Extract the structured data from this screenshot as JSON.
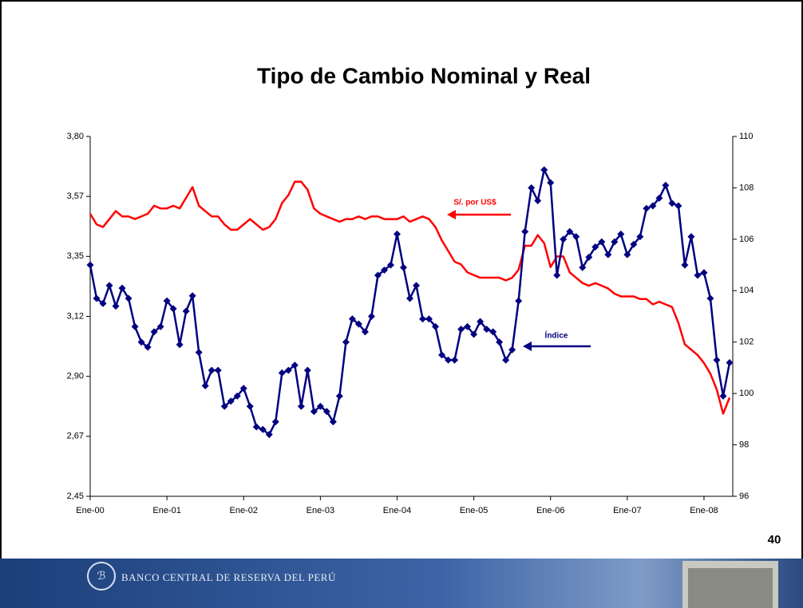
{
  "chart_data": {
    "type": "line",
    "title": "Tipo de Cambio Nominal y Real",
    "categories": [
      "Ene-00",
      null,
      null,
      null,
      null,
      null,
      null,
      null,
      null,
      null,
      null,
      null,
      "Ene-01",
      null,
      null,
      null,
      null,
      null,
      null,
      null,
      null,
      null,
      null,
      null,
      "Ene-02",
      null,
      null,
      null,
      null,
      null,
      null,
      null,
      null,
      null,
      null,
      null,
      "Ene-03",
      null,
      null,
      null,
      null,
      null,
      null,
      null,
      null,
      null,
      null,
      null,
      "Ene-04",
      null,
      null,
      null,
      null,
      null,
      null,
      null,
      null,
      null,
      null,
      null,
      "Ene-05",
      null,
      null,
      null,
      null,
      null,
      null,
      null,
      null,
      null,
      null,
      null,
      "Ene-06",
      null,
      null,
      null,
      null,
      null,
      null,
      null,
      null,
      null,
      null,
      null,
      "Ene-07",
      null,
      null,
      null,
      null,
      null,
      null,
      null,
      null,
      null,
      null,
      null,
      "Ene-08",
      null,
      null,
      null,
      null
    ],
    "series": [
      {
        "name": "S/. por US$",
        "color": "#ff0000",
        "axis": "y",
        "markers": false,
        "values": [
          3.51,
          3.47,
          3.46,
          3.49,
          3.52,
          3.5,
          3.5,
          3.49,
          3.5,
          3.51,
          3.54,
          3.53,
          3.53,
          3.54,
          3.53,
          3.57,
          3.61,
          3.54,
          3.52,
          3.5,
          3.5,
          3.47,
          3.45,
          3.45,
          3.47,
          3.49,
          3.47,
          3.45,
          3.46,
          3.49,
          3.55,
          3.58,
          3.63,
          3.63,
          3.6,
          3.53,
          3.51,
          3.5,
          3.49,
          3.48,
          3.49,
          3.49,
          3.5,
          3.49,
          3.5,
          3.5,
          3.49,
          3.49,
          3.49,
          3.5,
          3.48,
          3.49,
          3.5,
          3.49,
          3.46,
          3.41,
          3.37,
          3.33,
          3.32,
          3.29,
          3.28,
          3.27,
          3.27,
          3.27,
          3.27,
          3.26,
          3.27,
          3.3,
          3.39,
          3.39,
          3.43,
          3.4,
          3.31,
          3.35,
          3.35,
          3.29,
          3.27,
          3.25,
          3.24,
          3.25,
          3.24,
          3.23,
          3.21,
          3.2,
          3.2,
          3.2,
          3.19,
          3.19,
          3.17,
          3.18,
          3.17,
          3.16,
          3.1,
          3.02,
          3.0,
          2.98,
          2.95,
          2.91,
          2.85,
          2.76,
          2.82
        ]
      },
      {
        "name": "Índice",
        "color": "#000080",
        "axis": "y2",
        "markers": true,
        "values": [
          105.0,
          103.7,
          103.5,
          104.2,
          103.4,
          104.1,
          103.7,
          102.6,
          102.0,
          101.8,
          102.4,
          102.6,
          103.6,
          103.3,
          101.9,
          103.2,
          103.8,
          101.6,
          100.3,
          100.9,
          100.9,
          99.5,
          99.7,
          99.9,
          100.2,
          99.5,
          98.7,
          98.6,
          98.4,
          98.9,
          100.8,
          100.9,
          101.1,
          99.5,
          100.9,
          99.3,
          99.5,
          99.3,
          98.9,
          99.9,
          102.0,
          102.9,
          102.7,
          102.4,
          103.0,
          104.6,
          104.8,
          105.0,
          106.2,
          104.9,
          103.7,
          104.2,
          102.9,
          102.9,
          102.6,
          101.5,
          101.3,
          101.3,
          102.5,
          102.6,
          102.3,
          102.8,
          102.5,
          102.4,
          102.0,
          101.3,
          101.7,
          103.6,
          106.3,
          108.0,
          107.5,
          108.7,
          108.2,
          104.6,
          106.0,
          106.3,
          106.1,
          104.9,
          105.3,
          105.7,
          105.9,
          105.4,
          105.9,
          106.2,
          105.4,
          105.8,
          106.1,
          107.2,
          107.3,
          107.6,
          108.1,
          107.4,
          107.3,
          105.0,
          106.1,
          104.6,
          104.7,
          103.7,
          101.3,
          99.9,
          101.2
        ]
      }
    ],
    "ylim": [
      2.45,
      3.8
    ],
    "yticks": [
      {
        "value": 2.45,
        "label": "2,45"
      },
      {
        "value": 2.675,
        "label": "2,67"
      },
      {
        "value": 2.9,
        "label": "2,90"
      },
      {
        "value": 3.125,
        "label": "3,12"
      },
      {
        "value": 3.35,
        "label": "3,35"
      },
      {
        "value": 3.575,
        "label": "3,57"
      },
      {
        "value": 3.8,
        "label": "3,80"
      }
    ],
    "y2lim": [
      96,
      110
    ],
    "y2ticks": [
      96,
      98,
      100,
      102,
      104,
      106,
      108,
      110
    ],
    "grid": false
  },
  "page_number": "40",
  "footer": {
    "institution": "BANCO CENTRAL DE RESERVA DEL PERÚ"
  }
}
